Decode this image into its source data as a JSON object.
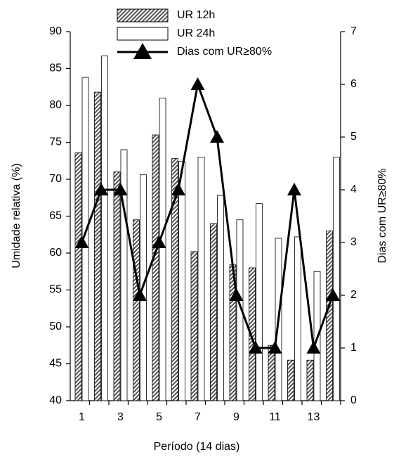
{
  "chart_data": {
    "type": "bar_line",
    "xlabel": "Período (14 dias)",
    "ylabel": "Umidade relativa (%)",
    "y2label": "Dias com UR≥80%",
    "categories": [
      1,
      null,
      3,
      null,
      5,
      null,
      7,
      null,
      9,
      null,
      11,
      null,
      13,
      null
    ],
    "series": [
      {
        "name": "UR 12h",
        "type": "bar",
        "color": "#555555",
        "values": [
          73.6,
          81.8,
          71,
          64.5,
          76,
          72.8,
          60.2,
          64,
          58.4,
          58,
          47.5,
          45.5,
          45.5,
          63
        ]
      },
      {
        "name": "UR 24h",
        "type": "bar",
        "color": "#ffffff",
        "values": [
          83.8,
          86.7,
          74,
          70.6,
          81,
          72.4,
          73,
          67.8,
          64.5,
          66.7,
          62,
          62.2,
          57.5,
          73
        ]
      },
      {
        "name": "Dias com UR≥80%",
        "type": "line",
        "axis": "y2",
        "color": "#000000",
        "values": [
          3,
          4,
          4,
          2,
          3,
          4,
          6,
          5,
          2,
          1,
          1,
          4,
          1,
          2
        ]
      }
    ],
    "ylim": [
      40,
      90
    ],
    "yticks": [
      40,
      45,
      50,
      55,
      60,
      65,
      70,
      75,
      80,
      85,
      90
    ],
    "y2lim": [
      0,
      7
    ],
    "y2ticks": [
      0,
      1,
      2,
      3,
      4,
      5,
      6,
      7
    ],
    "legend": "top"
  }
}
